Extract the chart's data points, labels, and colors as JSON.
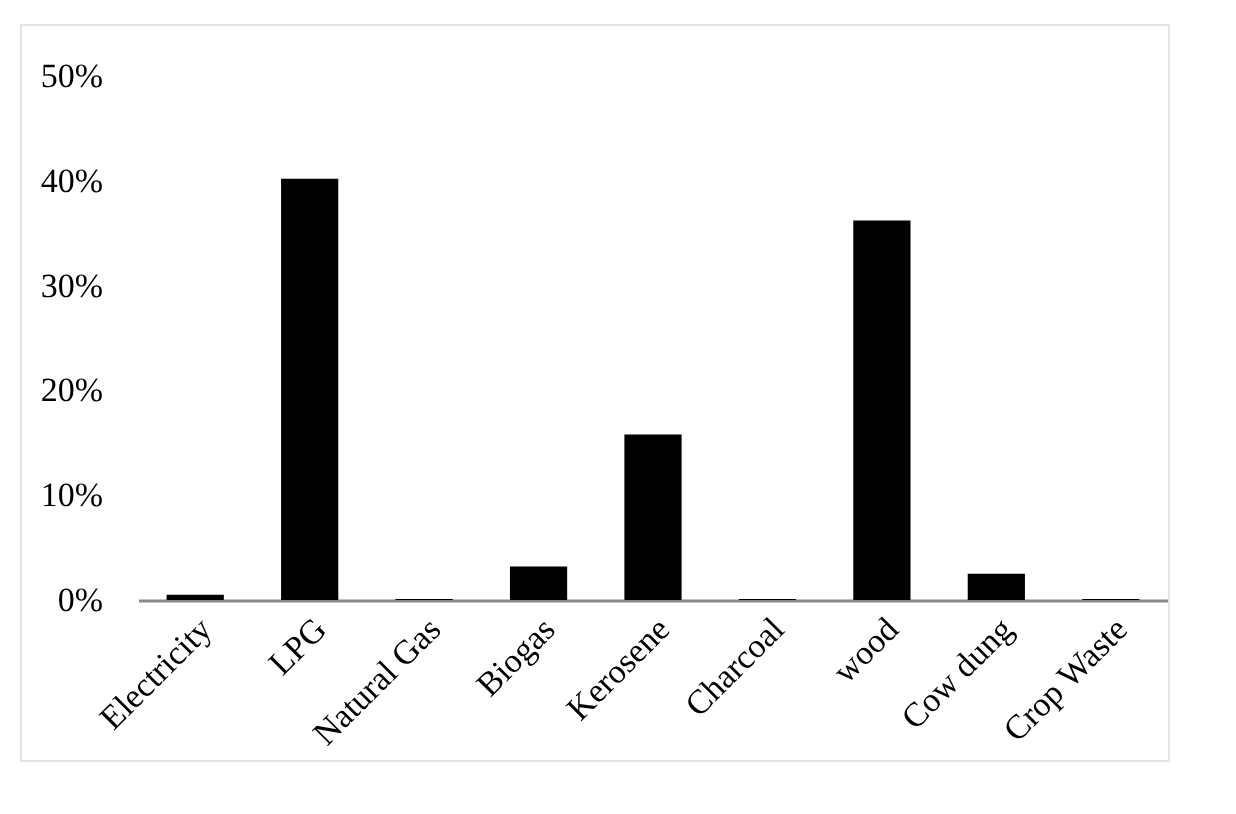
{
  "chart_data": {
    "type": "bar",
    "categories": [
      "Electricity",
      "LPG",
      "Natural Gas",
      "Biogas",
      "Kerosene",
      "Charcoal",
      "wood",
      "Cow dung",
      "Crop Waste"
    ],
    "values": [
      0.5,
      40.2,
      0.1,
      3.2,
      15.8,
      0.1,
      36.2,
      2.5,
      0.1
    ],
    "color": "#000000",
    "ylim": [
      0,
      50
    ],
    "yticks": [
      {
        "value": 0,
        "label": "0%"
      },
      {
        "value": 10,
        "label": "10%"
      },
      {
        "value": 20,
        "label": "20%"
      },
      {
        "value": 30,
        "label": "30%"
      },
      {
        "value": 40,
        "label": "40%"
      },
      {
        "value": 50,
        "label": "50%"
      }
    ],
    "grid": false
  }
}
